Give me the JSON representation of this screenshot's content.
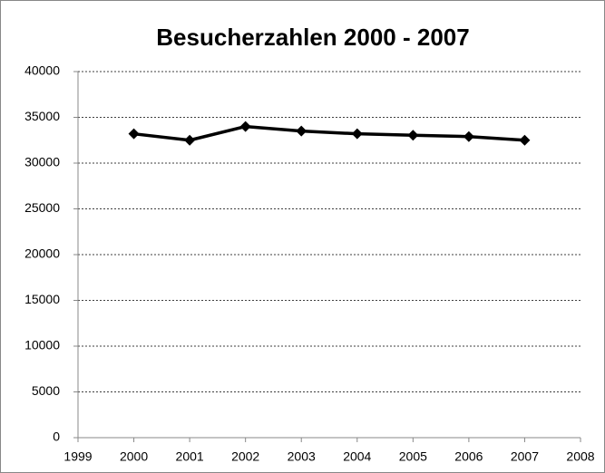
{
  "chart_data": {
    "type": "line",
    "title": "Besucherzahlen 2000 - 2007",
    "x": [
      2000,
      2001,
      2002,
      2003,
      2004,
      2005,
      2006,
      2007
    ],
    "series": [
      {
        "name": "Besucherzahlen",
        "color": "#000000",
        "values": [
          33200,
          32500,
          34000,
          33500,
          33200,
          33050,
          32900,
          32500
        ]
      }
    ],
    "xlim": [
      1999,
      2008
    ],
    "xticks": [
      1999,
      2000,
      2001,
      2002,
      2003,
      2004,
      2005,
      2006,
      2007,
      2008
    ],
    "ylim": [
      0,
      40000
    ],
    "yticks": [
      0,
      5000,
      10000,
      15000,
      20000,
      25000,
      30000,
      35000,
      40000
    ],
    "grid": true
  }
}
